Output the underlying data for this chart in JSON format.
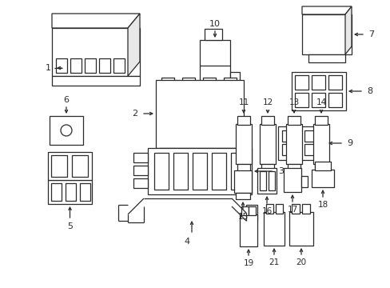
{
  "background_color": "#ffffff",
  "line_color": "#2a2a2a",
  "lw": 0.9,
  "fig_w": 4.89,
  "fig_h": 3.6,
  "dpi": 100
}
